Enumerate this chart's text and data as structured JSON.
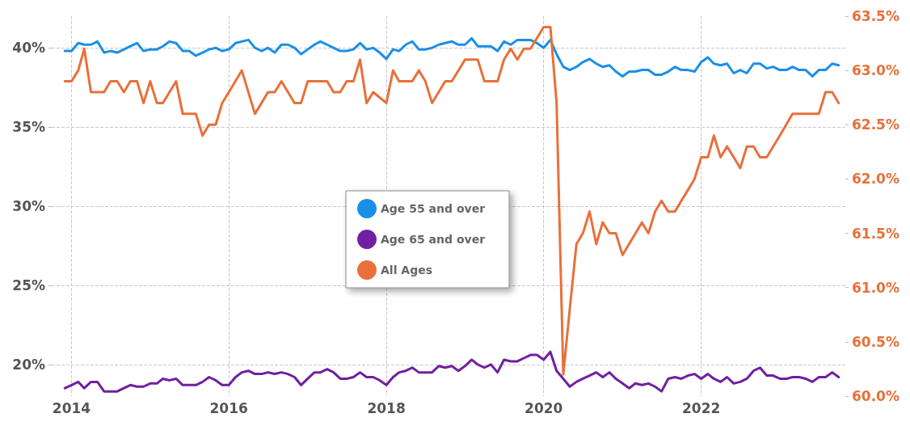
{
  "chart_data": {
    "type": "line",
    "xlim": [
      "2013-10",
      "2023-11"
    ],
    "xticks": [
      "2014",
      "2016",
      "2018",
      "2020",
      "2022"
    ],
    "ylim": [
      18,
      42
    ],
    "yticks": [
      {
        "value": 20,
        "label": "20%"
      },
      {
        "value": 25,
        "label": "25%"
      },
      {
        "value": 30,
        "label": "30%"
      },
      {
        "value": 35,
        "label": "35%"
      },
      {
        "value": 40,
        "label": "40%"
      }
    ],
    "y2lim": [
      60,
      63.5
    ],
    "y2ticks": [
      {
        "value": 60,
        "label": "60.0%"
      },
      {
        "value": 60.5,
        "label": "60.5%"
      },
      {
        "value": 61,
        "label": "61.0%"
      },
      {
        "value": 61.5,
        "label": "61.5%"
      },
      {
        "value": 62,
        "label": "62.0%"
      },
      {
        "value": 62.5,
        "label": "62.5%"
      },
      {
        "value": 63,
        "label": "63.0%"
      },
      {
        "value": 63.5,
        "label": "63.5%"
      }
    ],
    "grid": true,
    "legend": "center",
    "marker": "none",
    "line_style": "solid",
    "x": [
      "2013-12",
      "2014-01",
      "2014-02",
      "2014-03",
      "2014-04",
      "2014-05",
      "2014-06",
      "2014-07",
      "2014-08",
      "2014-09",
      "2014-10",
      "2014-11",
      "2014-12",
      "2015-01",
      "2015-02",
      "2015-03",
      "2015-04",
      "2015-05",
      "2015-06",
      "2015-07",
      "2015-08",
      "2015-09",
      "2015-10",
      "2015-11",
      "2015-12",
      "2016-01",
      "2016-02",
      "2016-03",
      "2016-04",
      "2016-05",
      "2016-06",
      "2016-07",
      "2016-08",
      "2016-09",
      "2016-10",
      "2016-11",
      "2016-12",
      "2017-01",
      "2017-02",
      "2017-03",
      "2017-04",
      "2017-05",
      "2017-06",
      "2017-07",
      "2017-08",
      "2017-09",
      "2017-10",
      "2017-11",
      "2017-12",
      "2018-01",
      "2018-02",
      "2018-03",
      "2018-04",
      "2018-05",
      "2018-06",
      "2018-07",
      "2018-08",
      "2018-09",
      "2018-10",
      "2018-11",
      "2018-12",
      "2019-01",
      "2019-02",
      "2019-03",
      "2019-04",
      "2019-05",
      "2019-06",
      "2019-07",
      "2019-08",
      "2019-09",
      "2019-10",
      "2019-11",
      "2019-12",
      "2020-01",
      "2020-02",
      "2020-03",
      "2020-04",
      "2020-05",
      "2020-06",
      "2020-07",
      "2020-08",
      "2020-09",
      "2020-10",
      "2020-11",
      "2020-12",
      "2021-01",
      "2021-02",
      "2021-03",
      "2021-04",
      "2021-05",
      "2021-06",
      "2021-07",
      "2021-08",
      "2021-09",
      "2021-10",
      "2021-11",
      "2021-12",
      "2022-01",
      "2022-02",
      "2022-03",
      "2022-04",
      "2022-05",
      "2022-06",
      "2022-07",
      "2022-08",
      "2022-09",
      "2022-10",
      "2022-11",
      "2022-12",
      "2023-01",
      "2023-02",
      "2023-03",
      "2023-04",
      "2023-05",
      "2023-06",
      "2023-07",
      "2023-08",
      "2023-09",
      "2023-10"
    ],
    "series": [
      {
        "name": "Age 55 and over",
        "color": "#1a8fe8",
        "values": [
          39.8,
          39.8,
          40.3,
          40.2,
          40.2,
          40.4,
          39.7,
          39.8,
          39.7,
          39.9,
          40.1,
          40.3,
          39.8,
          39.9,
          39.9,
          40.1,
          40.4,
          40.3,
          39.8,
          39.8,
          39.5,
          39.7,
          39.9,
          40.0,
          39.8,
          39.9,
          40.3,
          40.4,
          40.5,
          40.0,
          39.8,
          40.0,
          39.7,
          40.2,
          40.2,
          40.0,
          39.6,
          39.9,
          40.2,
          40.4,
          40.2,
          40.0,
          39.8,
          39.8,
          39.9,
          40.3,
          39.9,
          40.0,
          39.7,
          39.3,
          39.9,
          39.8,
          40.2,
          40.4,
          39.9,
          39.9,
          40.0,
          40.2,
          40.3,
          40.4,
          40.2,
          40.2,
          40.6,
          40.1,
          40.1,
          40.1,
          39.8,
          40.4,
          40.2,
          40.5,
          40.5,
          40.5,
          40.3,
          40.0,
          40.5,
          39.6,
          38.8,
          38.6,
          38.8,
          39.1,
          39.3,
          39.0,
          38.8,
          38.9,
          38.5,
          38.2,
          38.5,
          38.5,
          38.6,
          38.6,
          38.3,
          38.3,
          38.5,
          38.8,
          38.6,
          38.6,
          38.5,
          39.1,
          39.4,
          39.0,
          38.9,
          39.0,
          38.4,
          38.6,
          38.4,
          39.0,
          39.0,
          38.7,
          38.8,
          38.6,
          38.6,
          38.8,
          38.6,
          38.6,
          38.2,
          38.6,
          38.6,
          39.0,
          38.9
        ]
      },
      {
        "name": "Age 65 and over",
        "color": "#7020a0",
        "values": [
          18.5,
          18.7,
          18.9,
          18.5,
          18.9,
          18.9,
          18.3,
          18.3,
          18.3,
          18.5,
          18.7,
          18.6,
          18.6,
          18.8,
          18.8,
          19.1,
          19.0,
          19.1,
          18.7,
          18.7,
          18.7,
          18.9,
          19.2,
          19.0,
          18.7,
          18.7,
          19.2,
          19.5,
          19.6,
          19.4,
          19.4,
          19.5,
          19.4,
          19.5,
          19.4,
          19.2,
          18.7,
          19.1,
          19.5,
          19.5,
          19.7,
          19.5,
          19.1,
          19.1,
          19.2,
          19.5,
          19.2,
          19.2,
          19.0,
          18.7,
          19.2,
          19.5,
          19.6,
          19.8,
          19.5,
          19.5,
          19.5,
          19.9,
          19.8,
          19.9,
          19.6,
          19.9,
          20.3,
          20.0,
          19.8,
          20.0,
          19.5,
          20.3,
          20.2,
          20.2,
          20.4,
          20.6,
          20.6,
          20.3,
          20.8,
          19.6,
          19.1,
          18.6,
          18.9,
          19.1,
          19.3,
          19.5,
          19.2,
          19.5,
          19.1,
          18.8,
          18.5,
          18.8,
          18.7,
          18.8,
          18.6,
          18.3,
          19.1,
          19.2,
          19.1,
          19.3,
          19.4,
          19.1,
          19.4,
          19.1,
          18.9,
          19.2,
          18.8,
          18.9,
          19.1,
          19.6,
          19.8,
          19.3,
          19.3,
          19.1,
          19.1,
          19.2,
          19.2,
          19.1,
          18.9,
          19.2,
          19.2,
          19.5,
          19.2
        ]
      },
      {
        "name": "All Ages",
        "color": "#e8703a",
        "axis": "y2",
        "x": [
          "2013-12",
          "2014-01",
          "2014-02",
          "2014-03",
          "2014-04",
          "2014-06",
          "2014-07",
          "2014-08",
          "2014-09",
          "2014-10",
          "2014-11",
          "2014-12",
          "2015-01",
          "2015-02",
          "2015-03",
          "2015-05",
          "2015-06",
          "2015-08",
          "2015-09",
          "2015-10",
          "2015-11",
          "2015-12",
          "2016-01",
          "2016-03",
          "2016-05",
          "2016-07",
          "2016-08",
          "2016-09",
          "2016-11",
          "2016-12",
          "2017-01",
          "2017-04",
          "2017-05",
          "2017-06",
          "2017-07",
          "2017-08",
          "2017-09",
          "2017-10",
          "2017-11",
          "2018-01",
          "2018-02",
          "2018-03",
          "2018-05",
          "2018-06",
          "2018-07",
          "2018-08",
          "2018-10",
          "2018-11",
          "2019-01",
          "2019-03",
          "2019-04",
          "2019-06",
          "2019-07",
          "2019-08",
          "2019-09",
          "2019-10",
          "2019-11",
          "2020-01",
          "2020-02",
          "2020-03",
          "2020-04",
          "2020-05",
          "2020-06",
          "2020-07",
          "2020-08",
          "2020-09",
          "2020-10",
          "2020-11",
          "2020-12",
          "2021-01",
          "2021-04",
          "2021-05",
          "2021-06",
          "2021-07",
          "2021-08",
          "2021-09",
          "2021-10",
          "2021-11",
          "2021-12",
          "2022-01",
          "2022-02",
          "2022-03",
          "2022-04",
          "2022-05",
          "2022-06",
          "2022-07",
          "2022-08",
          "2022-09",
          "2022-10",
          "2022-11",
          "2023-01",
          "2023-03",
          "2023-07",
          "2023-08",
          "2023-09",
          "2023-10"
        ],
        "values": [
          62.9,
          62.9,
          63.0,
          63.2,
          62.8,
          62.8,
          62.9,
          62.9,
          62.8,
          62.9,
          62.9,
          62.7,
          62.9,
          62.7,
          62.7,
          62.9,
          62.6,
          62.6,
          62.4,
          62.5,
          62.5,
          62.7,
          62.8,
          63.0,
          62.6,
          62.8,
          62.8,
          62.9,
          62.7,
          62.7,
          62.9,
          62.9,
          62.8,
          62.8,
          62.9,
          62.9,
          63.1,
          62.7,
          62.8,
          62.7,
          63.0,
          62.9,
          62.9,
          63.0,
          62.9,
          62.7,
          62.9,
          62.9,
          63.1,
          63.1,
          62.9,
          62.9,
          63.1,
          63.2,
          63.1,
          63.2,
          63.2,
          63.4,
          63.4,
          62.7,
          60.2,
          60.8,
          61.4,
          61.5,
          61.7,
          61.4,
          61.6,
          61.5,
          61.5,
          61.3,
          61.6,
          61.5,
          61.7,
          61.8,
          61.7,
          61.7,
          61.8,
          61.9,
          62.0,
          62.2,
          62.2,
          62.4,
          62.2,
          62.3,
          62.2,
          62.1,
          62.3,
          62.3,
          62.2,
          62.2,
          62.4,
          62.6,
          62.6,
          62.8,
          62.8,
          62.7
        ]
      }
    ]
  }
}
